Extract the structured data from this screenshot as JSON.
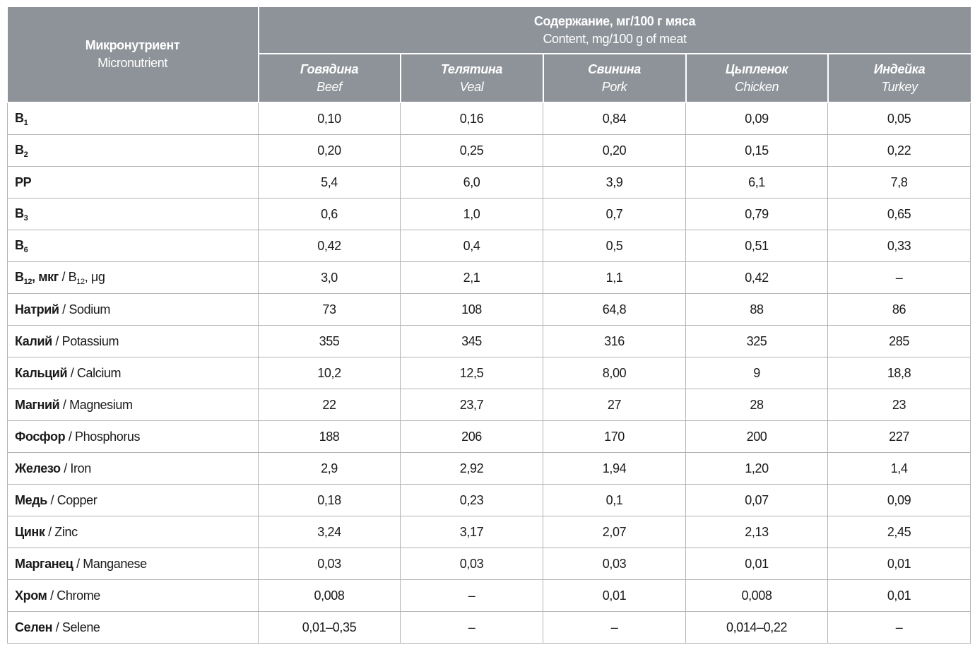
{
  "table": {
    "header": {
      "first": {
        "ru": "Микронутриент",
        "en": "Micronutrient"
      },
      "group": {
        "ru": "Содержание, мг/100 г мяса",
        "en": "Content, mg/100 g of meat"
      },
      "columns": [
        {
          "ru": "Говядина",
          "en": "Beef"
        },
        {
          "ru": "Телятина",
          "en": "Veal"
        },
        {
          "ru": "Свинина",
          "en": "Pork"
        },
        {
          "ru": "Цыпленок",
          "en": "Chicken"
        },
        {
          "ru": "Индейка",
          "en": "Turkey"
        }
      ]
    },
    "rows": [
      {
        "label": [
          {
            "text": "B",
            "style": "bold"
          },
          {
            "text": "1",
            "style": "bold-sub"
          }
        ],
        "values": [
          "0,10",
          "0,16",
          "0,84",
          "0,09",
          "0,05"
        ]
      },
      {
        "label": [
          {
            "text": "B",
            "style": "bold"
          },
          {
            "text": "2",
            "style": "bold-sub"
          }
        ],
        "values": [
          "0,20",
          "0,25",
          "0,20",
          "0,15",
          "0,22"
        ]
      },
      {
        "label": [
          {
            "text": "PP",
            "style": "bold"
          }
        ],
        "values": [
          "5,4",
          "6,0",
          "3,9",
          "6,1",
          "7,8"
        ]
      },
      {
        "label": [
          {
            "text": "B",
            "style": "bold"
          },
          {
            "text": "3",
            "style": "bold-sub"
          }
        ],
        "values": [
          "0,6",
          "1,0",
          "0,7",
          "0,79",
          "0,65"
        ]
      },
      {
        "label": [
          {
            "text": "B",
            "style": "bold"
          },
          {
            "text": "6",
            "style": "bold-sub"
          }
        ],
        "values": [
          "0,42",
          "0,4",
          "0,5",
          "0,51",
          "0,33"
        ]
      },
      {
        "label": [
          {
            "text": "B",
            "style": "bold"
          },
          {
            "text": "12",
            "style": "bold-sub"
          },
          {
            "text": ", мкг",
            "style": "bold"
          },
          {
            "text": " / B",
            "style": "plain"
          },
          {
            "text": "12",
            "style": "sub"
          },
          {
            "text": ", μg",
            "style": "plain"
          }
        ],
        "values": [
          "3,0",
          "2,1",
          "1,1",
          "0,42",
          "–"
        ]
      },
      {
        "label": [
          {
            "text": "Натрий",
            "style": "bold"
          },
          {
            "text": " / Sodium",
            "style": "plain"
          }
        ],
        "values": [
          "73",
          "108",
          "64,8",
          "88",
          "86"
        ]
      },
      {
        "label": [
          {
            "text": "Калий",
            "style": "bold"
          },
          {
            "text": " / Potassium",
            "style": "plain"
          }
        ],
        "values": [
          "355",
          "345",
          "316",
          "325",
          "285"
        ]
      },
      {
        "label": [
          {
            "text": "Кальций",
            "style": "bold"
          },
          {
            "text": " / Calcium",
            "style": "plain"
          }
        ],
        "values": [
          "10,2",
          "12,5",
          "8,00",
          "9",
          "18,8"
        ]
      },
      {
        "label": [
          {
            "text": "Магний",
            "style": "bold"
          },
          {
            "text": " / Magnesium",
            "style": "plain"
          }
        ],
        "values": [
          "22",
          "23,7",
          "27",
          "28",
          "23"
        ]
      },
      {
        "label": [
          {
            "text": "Фосфор",
            "style": "bold"
          },
          {
            "text": " / Phosphorus",
            "style": "plain"
          }
        ],
        "values": [
          "188",
          "206",
          "170",
          "200",
          "227"
        ]
      },
      {
        "label": [
          {
            "text": "Железо",
            "style": "bold"
          },
          {
            "text": " / Iron",
            "style": "plain"
          }
        ],
        "values": [
          "2,9",
          "2,92",
          "1,94",
          "1,20",
          "1,4"
        ]
      },
      {
        "label": [
          {
            "text": "Медь",
            "style": "bold"
          },
          {
            "text": " / Copper",
            "style": "plain"
          }
        ],
        "values": [
          "0,18",
          "0,23",
          "0,1",
          "0,07",
          "0,09"
        ]
      },
      {
        "label": [
          {
            "text": "Цинк",
            "style": "bold"
          },
          {
            "text": " / Zinc",
            "style": "plain"
          }
        ],
        "values": [
          "3,24",
          "3,17",
          "2,07",
          "2,13",
          "2,45"
        ]
      },
      {
        "label": [
          {
            "text": "Марганец",
            "style": "bold"
          },
          {
            "text": " / Manganese",
            "style": "plain"
          }
        ],
        "values": [
          "0,03",
          "0,03",
          "0,03",
          "0,01",
          "0,01"
        ]
      },
      {
        "label": [
          {
            "text": "Хром",
            "style": "bold"
          },
          {
            "text": " / Chrome",
            "style": "plain"
          }
        ],
        "values": [
          "0,008",
          "–",
          "0,01",
          "0,008",
          "0,01"
        ]
      },
      {
        "label": [
          {
            "text": "Селен",
            "style": "bold"
          },
          {
            "text": " / Selene",
            "style": "plain"
          }
        ],
        "values": [
          "0,01–0,35",
          "–",
          "–",
          "0,014–0,22",
          "–"
        ]
      }
    ]
  }
}
